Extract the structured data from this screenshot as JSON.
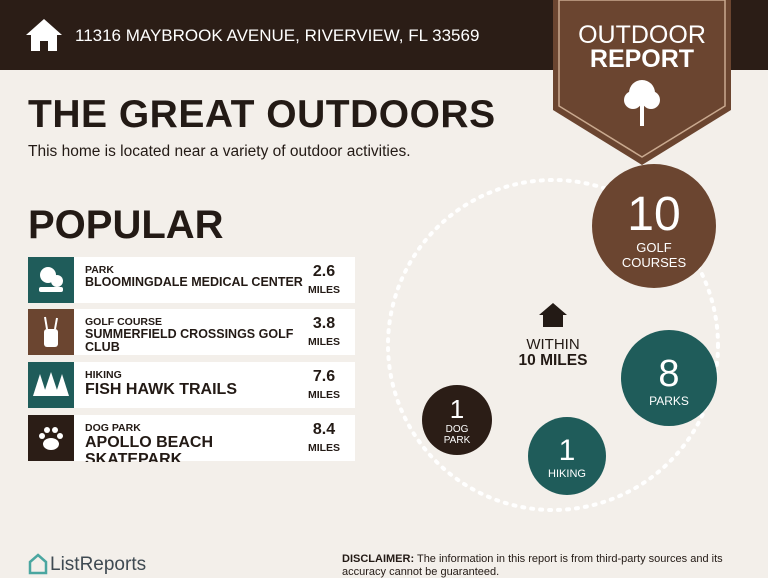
{
  "header": {
    "address": "11316 MAYBROOK AVENUE, RIVERVIEW, FL 33569"
  },
  "badge": {
    "line1": "OUTDOOR",
    "line2": "REPORT"
  },
  "title": "THE GREAT OUTDOORS",
  "subtitle": "This home is located near a variety of outdoor activities.",
  "popular": {
    "title": "POPULAR",
    "items": [
      {
        "category": "PARK",
        "name": "BLOOMINGDALE MEDICAL CENTER",
        "distance": 2.6,
        "unit": "MILES"
      },
      {
        "category": "GOLF COURSE",
        "name": "SUMMERFIELD CROSSINGS GOLF CLUB",
        "distance": 3.8,
        "unit": "MILES"
      },
      {
        "category": "HIKING",
        "name": "FISH HAWK TRAILS",
        "distance": 7.6,
        "unit": "MILES"
      },
      {
        "category": "DOG PARK",
        "name": "APOLLO BEACH SKATEPARK",
        "distance": 8.4,
        "unit": "MILES"
      }
    ]
  },
  "radius": {
    "line1": "WITHIN",
    "line2": "10 MILES",
    "circles": [
      {
        "count": 10,
        "label": "GOLF COURSES"
      },
      {
        "count": 8,
        "label": "PARKS"
      },
      {
        "count": 1,
        "label": "HIKING"
      },
      {
        "count": 1,
        "label": "DOG PARK"
      }
    ]
  },
  "footer": {
    "logo": "ListReports",
    "disclaimer_label": "DISCLAIMER:",
    "disclaimer": "The information in this report is from third-party sources and its accuracy cannot be guaranteed."
  }
}
